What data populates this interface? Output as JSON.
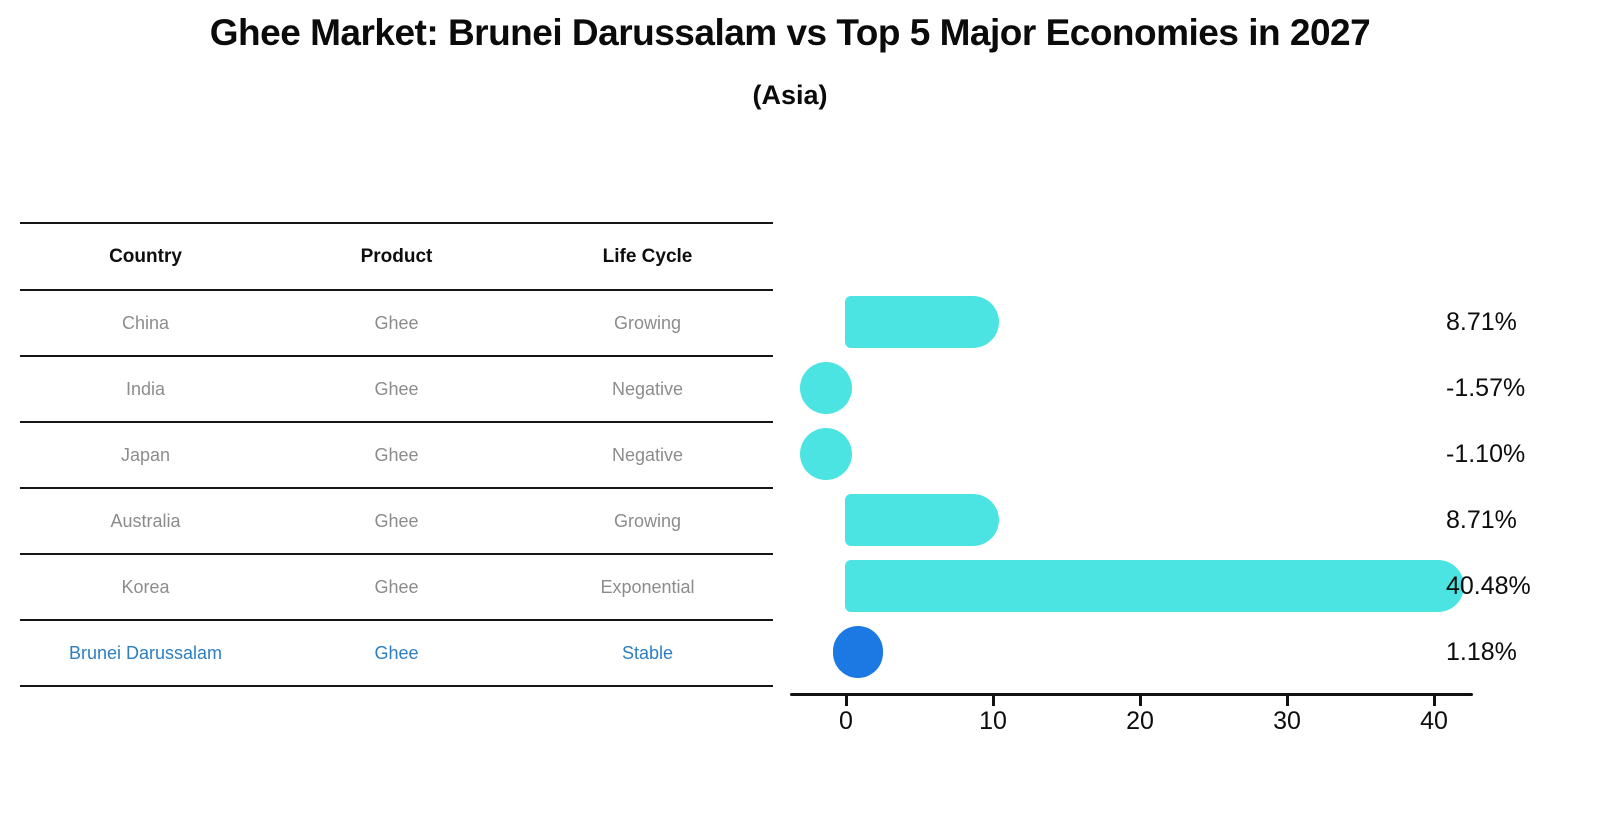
{
  "title": "Ghee Market: Brunei Darussalam vs Top 5 Major Economies in 2027",
  "subtitle": "(Asia)",
  "table": {
    "headers": [
      "Country",
      "Product",
      "Life Cycle"
    ],
    "rows": [
      {
        "country": "China",
        "product": "Ghee",
        "life_cycle": "Growing",
        "highlight": false
      },
      {
        "country": "India",
        "product": "Ghee",
        "life_cycle": "Negative",
        "highlight": false
      },
      {
        "country": "Japan",
        "product": "Ghee",
        "life_cycle": "Negative",
        "highlight": false
      },
      {
        "country": "Australia",
        "product": "Ghee",
        "life_cycle": "Growing",
        "highlight": false
      },
      {
        "country": "Korea",
        "product": "Ghee",
        "life_cycle": "Exponential",
        "highlight": false
      },
      {
        "country": "Brunei Darussalam",
        "product": "Ghee",
        "life_cycle": "Stable",
        "highlight": true
      }
    ]
  },
  "chart_data": {
    "type": "bar",
    "orientation": "horizontal",
    "categories": [
      "China",
      "India",
      "Japan",
      "Australia",
      "Korea",
      "Brunei Darussalam"
    ],
    "values": [
      8.71,
      -1.57,
      -1.1,
      8.71,
      40.48,
      1.18
    ],
    "value_labels": [
      "8.71%",
      "-1.57%",
      "-1.10%",
      "8.71%",
      "40.48%",
      "1.18%"
    ],
    "x_ticks": [
      "0",
      "10",
      "20",
      "30",
      "40"
    ],
    "xlim": [
      -4,
      43
    ],
    "title": "Ghee Market: Brunei Darussalam vs Top 5 Major Economies in 2027 (Asia)",
    "xlabel": "",
    "ylabel": "",
    "grid": false,
    "legend": false,
    "bar_color": "#4be4e2",
    "highlight_color": "#1c79e3",
    "highlight_index": 5
  },
  "colors": {
    "bar_cyan": "#4be4e2",
    "bar_blue": "#1c79e3",
    "highlight_text": "#2e7fc1",
    "row_text": "#8c8c8c",
    "axis_text": "#0d0d0d"
  }
}
